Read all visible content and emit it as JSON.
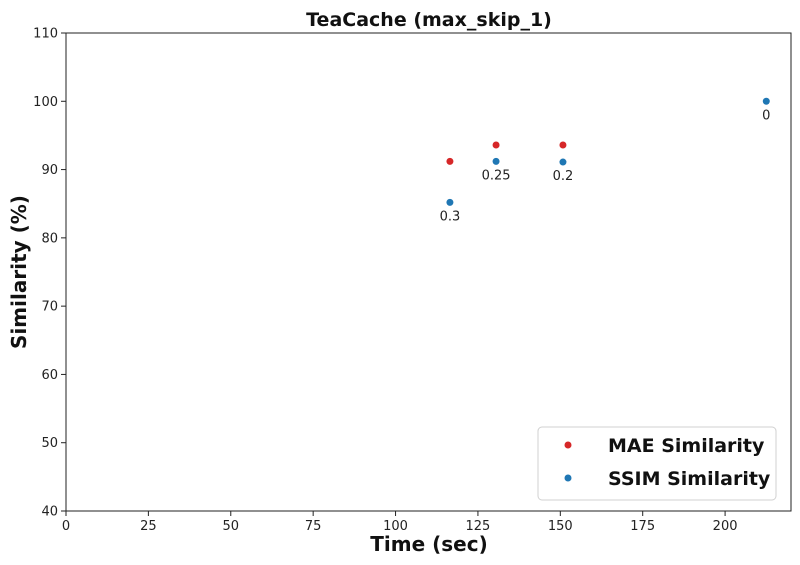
{
  "chart_data": {
    "type": "scatter",
    "title": "TeaCache (max_skip_1)",
    "xlabel": "Time (sec)",
    "ylabel": "Similarity (%)",
    "xlim": [
      0,
      220
    ],
    "ylim": [
      40,
      110
    ],
    "xticks": [
      0,
      25,
      50,
      75,
      100,
      125,
      150,
      175,
      200
    ],
    "yticks": [
      40,
      50,
      60,
      70,
      80,
      90,
      100,
      110
    ],
    "grid": false,
    "legend_position": "bottom-right",
    "series": [
      {
        "name": "MAE Similarity",
        "color": "#d62728",
        "points": [
          {
            "x": 116.5,
            "y": 91.2
          },
          {
            "x": 130.5,
            "y": 93.6
          },
          {
            "x": 150.8,
            "y": 93.6
          }
        ]
      },
      {
        "name": "SSIM Similarity",
        "color": "#1f77b4",
        "points": [
          {
            "x": 116.5,
            "y": 85.2
          },
          {
            "x": 130.5,
            "y": 91.2
          },
          {
            "x": 150.8,
            "y": 91.1
          },
          {
            "x": 212.5,
            "y": 100.0
          }
        ]
      }
    ],
    "annotations": [
      {
        "text": "0.3",
        "x": 116.5,
        "y": 85.2
      },
      {
        "text": "0.25",
        "x": 130.5,
        "y": 91.2
      },
      {
        "text": "0.2",
        "x": 150.8,
        "y": 91.1
      },
      {
        "text": "0",
        "x": 212.5,
        "y": 100.0
      }
    ]
  }
}
